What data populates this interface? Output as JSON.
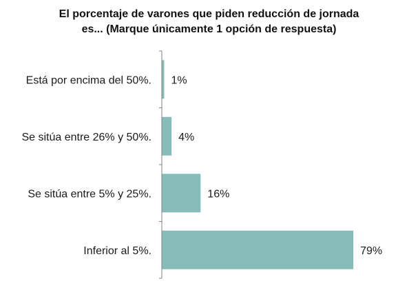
{
  "chart_data": {
    "type": "bar",
    "orientation": "horizontal",
    "title_lines": [
      "El porcentaje de varones que piden reducción de jornada",
      "es... (Marque únicamente 1 opción de respuesta)"
    ],
    "categories": [
      "Está por encima del 50%.",
      "Se sitúa entre 26% y 50%.",
      "Se sitúa entre 5% y 25%.",
      "Inferior al 5%."
    ],
    "values": [
      1,
      4,
      16,
      79
    ],
    "value_labels": [
      "1%",
      "4%",
      "16%",
      "79%"
    ],
    "xlim": [
      0,
      100
    ],
    "grid": false,
    "bar_color": "#86bdb9",
    "axis_color": "#7f7f7f"
  }
}
